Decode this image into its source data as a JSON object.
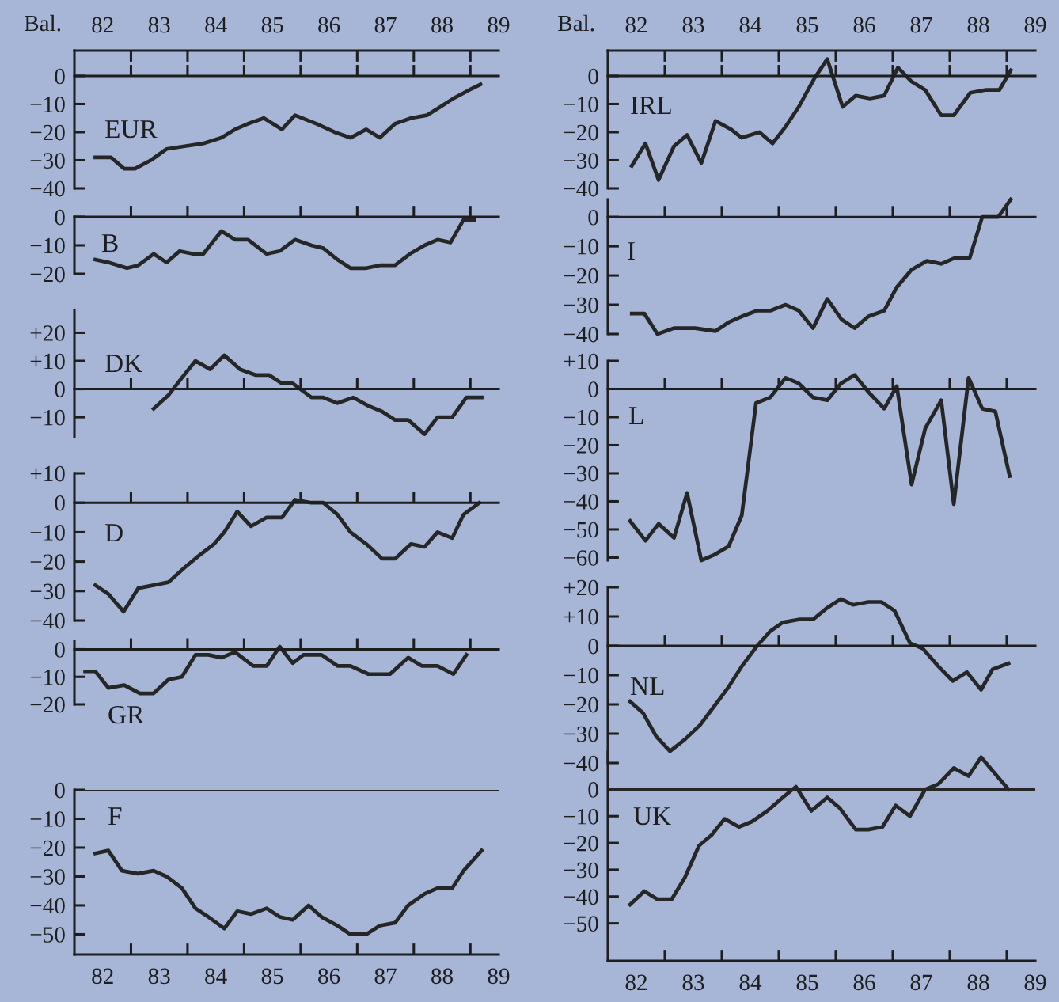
{
  "chart_data": [
    {
      "type": "line",
      "annotations": [
        "Bal."
      ],
      "xlim": [
        82,
        89.5
      ],
      "xticks": [
        {
          "value": 83,
          "label": null
        },
        {
          "value": 84,
          "label": null
        },
        {
          "value": 85,
          "label": null
        },
        {
          "value": 86,
          "label": null
        },
        {
          "value": 87,
          "label": null
        },
        {
          "value": 88,
          "label": null
        },
        {
          "value": 89,
          "label": null
        }
      ],
      "x2lim": [
        82,
        89.5
      ],
      "x2ticks": [
        {
          "value": 82.5,
          "label": "82"
        },
        {
          "value": 83.5,
          "label": "83"
        },
        {
          "value": 84.5,
          "label": "84"
        },
        {
          "value": 85.5,
          "label": "85"
        },
        {
          "value": 86.5,
          "label": "86"
        },
        {
          "value": 87.5,
          "label": "87"
        },
        {
          "value": 88.5,
          "label": "88"
        },
        {
          "value": 89.5,
          "label": "89"
        },
        {
          "value": 83,
          "label": null
        },
        {
          "value": 84,
          "label": null
        },
        {
          "value": 85,
          "label": null
        },
        {
          "value": 86,
          "label": null
        },
        {
          "value": 87,
          "label": null
        },
        {
          "value": 88,
          "label": null
        },
        {
          "value": 89,
          "label": null
        }
      ],
      "ylim": [
        -40,
        9
      ],
      "yticks": [
        0,
        {
          "value": -10,
          "label": "−10"
        },
        {
          "value": -20,
          "label": "−20"
        },
        {
          "value": -30,
          "label": "−30"
        },
        {
          "value": -40,
          "label": "−40"
        }
      ],
      "tick_labels": "y",
      "marker": "none",
      "line_style": "solid",
      "series": [
        {
          "name": "EUR",
          "color": "#262626",
          "x": [
            82.37,
            82.65,
            82.88,
            83.07,
            83.35,
            83.63,
            83.95,
            84.28,
            84.6,
            84.84,
            85.07,
            85.35,
            85.67,
            85.9,
            86.28,
            86.6,
            86.88,
            87.16,
            87.4,
            87.67,
            87.95,
            88.23,
            88.47,
            88.7,
            88.98,
            89.18
          ],
          "values": [
            -29,
            -29,
            -33,
            -33,
            -30,
            -26,
            -25,
            -24,
            -22,
            -19,
            -17,
            -15,
            -19,
            -14,
            -17,
            -20,
            -22,
            -19,
            -22,
            -17,
            -15,
            -14,
            -11,
            -8,
            -5,
            -3
          ]
        }
      ]
    },
    {
      "type": "line",
      "xlim": [
        82,
        89.5
      ],
      "xticks": [
        {
          "value": 83,
          "label": null
        },
        {
          "value": 84,
          "label": null
        },
        {
          "value": 85,
          "label": null
        },
        {
          "value": 86,
          "label": null
        },
        {
          "value": 87,
          "label": null
        },
        {
          "value": 88,
          "label": null
        },
        {
          "value": 89,
          "label": null
        }
      ],
      "ylim": [
        -20,
        0
      ],
      "yticks": [
        0,
        {
          "value": -10,
          "label": "−10"
        },
        {
          "value": -20,
          "label": "−20"
        }
      ],
      "tick_labels": "y",
      "marker": "none",
      "line_style": "solid",
      "series": [
        {
          "name": "B",
          "color": "#262626",
          "x": [
            82.37,
            82.6,
            82.93,
            83.13,
            83.4,
            83.63,
            83.86,
            84.1,
            84.28,
            84.6,
            84.84,
            85.07,
            85.4,
            85.63,
            85.9,
            86.19,
            86.4,
            86.65,
            86.88,
            87.16,
            87.4,
            87.67,
            87.93,
            88.19,
            88.42,
            88.65,
            88.88,
            89.07
          ],
          "values": [
            -15,
            -16,
            -18,
            -17,
            -13,
            -16,
            -12,
            -13,
            -13,
            -5,
            -8,
            -8,
            -13,
            -12,
            -8,
            -10,
            -11,
            -15,
            -18,
            -18,
            -17,
            -17,
            -13,
            -10,
            -8,
            -9,
            -1,
            -1
          ]
        }
      ]
    },
    {
      "type": "line",
      "xlim": [
        82,
        89.5
      ],
      "xticks": [
        {
          "value": 83,
          "label": null
        },
        {
          "value": 84,
          "label": null
        },
        {
          "value": 85,
          "label": null
        },
        {
          "value": 86,
          "label": null
        },
        {
          "value": 87,
          "label": null
        },
        {
          "value": 88,
          "label": null
        },
        {
          "value": 89,
          "label": null
        }
      ],
      "ylim": [
        -17,
        28
      ],
      "yticks": [
        {
          "value": 20,
          "label": "+20"
        },
        {
          "value": 10,
          "label": "+10"
        },
        0,
        {
          "value": -10,
          "label": "−10"
        }
      ],
      "tick_labels": "y",
      "marker": "none",
      "line_style": "solid",
      "series": [
        {
          "name": "DK",
          "color": "#262626",
          "x": [
            83.4,
            83.67,
            83.9,
            84.14,
            84.4,
            84.65,
            84.93,
            85.2,
            85.44,
            85.67,
            85.86,
            86.19,
            86.4,
            86.65,
            86.93,
            87.2,
            87.44,
            87.67,
            87.9,
            88.19,
            88.42,
            88.68,
            88.93,
            89.2
          ],
          "values": [
            -7,
            -2,
            4,
            10,
            7,
            12,
            7,
            5,
            5,
            2,
            2,
            -3,
            -3,
            -5,
            -3,
            -6,
            -8,
            -11,
            -11,
            -16,
            -10,
            -10,
            -3,
            -3
          ]
        }
      ]
    },
    {
      "type": "line",
      "xlim": [
        82,
        89.5
      ],
      "xticks": [
        {
          "value": 83,
          "label": null
        },
        {
          "value": 84,
          "label": null
        },
        {
          "value": 85,
          "label": null
        },
        {
          "value": 86,
          "label": null
        },
        {
          "value": 87,
          "label": null
        },
        {
          "value": 88,
          "label": null
        },
        {
          "value": 89,
          "label": null
        }
      ],
      "ylim": [
        -40,
        10
      ],
      "yticks": [
        {
          "value": 10,
          "label": "+10"
        },
        0,
        {
          "value": -10,
          "label": "−10"
        },
        {
          "value": -20,
          "label": "−20"
        },
        {
          "value": -30,
          "label": "−30"
        },
        {
          "value": -40,
          "label": "−40"
        }
      ],
      "tick_labels": "y",
      "marker": "none",
      "line_style": "solid",
      "series": [
        {
          "name": "D",
          "color": "#262626",
          "x": [
            82.37,
            82.6,
            82.87,
            83.13,
            83.4,
            83.66,
            83.95,
            84.2,
            84.47,
            84.65,
            84.88,
            85.12,
            85.4,
            85.67,
            85.9,
            86.19,
            86.4,
            86.65,
            86.88,
            87.16,
            87.44,
            87.67,
            87.95,
            88.19,
            88.42,
            88.68,
            88.88,
            89.16
          ],
          "values": [
            -28,
            -31,
            -37,
            -29,
            -28,
            -27,
            -22,
            -18,
            -14,
            -10,
            -3,
            -8,
            -5,
            -5,
            1,
            0,
            0,
            -4,
            -10,
            -14,
            -19,
            -19,
            -14,
            -15,
            -10,
            -12,
            -4,
            0
          ]
        }
      ]
    },
    {
      "type": "line",
      "xlim": [
        82,
        89.5
      ],
      "xticks": [
        {
          "value": 83,
          "label": null
        },
        {
          "value": 84,
          "label": null
        },
        {
          "value": 85,
          "label": null
        },
        {
          "value": 86,
          "label": null
        },
        {
          "value": 87,
          "label": null
        },
        {
          "value": 88,
          "label": null
        },
        {
          "value": 89,
          "label": null
        }
      ],
      "ylim": [
        -20,
        3
      ],
      "yticks": [
        0,
        {
          "value": -10,
          "label": "−10"
        },
        {
          "value": -20,
          "label": "−20"
        }
      ],
      "tick_labels": "y",
      "marker": "none",
      "line_style": "solid",
      "series": [
        {
          "name": "GR",
          "color": "#262626",
          "x": [
            82.19,
            82.37,
            82.6,
            82.88,
            83.16,
            83.4,
            83.66,
            83.9,
            84.14,
            84.37,
            84.6,
            84.84,
            85.16,
            85.4,
            85.63,
            85.86,
            86.05,
            86.37,
            86.65,
            86.88,
            87.2,
            87.58,
            87.9,
            88.14,
            88.42,
            88.7,
            88.93
          ],
          "values": [
            -8,
            -8,
            -14,
            -13,
            -16,
            -16,
            -11,
            -10,
            -2,
            -2,
            -3,
            -1,
            -6,
            -6,
            1,
            -5,
            -2,
            -2,
            -6,
            -6,
            -9,
            -9,
            -3,
            -6,
            -6,
            -9,
            -2
          ]
        }
      ]
    },
    {
      "type": "line",
      "xlim": [
        82,
        89.5
      ],
      "xticks": [
        {
          "value": 82.5,
          "label": "82"
        },
        {
          "value": 83.5,
          "label": "83"
        },
        {
          "value": 84.5,
          "label": "84"
        },
        {
          "value": 85.5,
          "label": "85"
        },
        {
          "value": 86.5,
          "label": "86"
        },
        {
          "value": 87.5,
          "label": "87"
        },
        {
          "value": 88.5,
          "label": "88"
        },
        {
          "value": 89.5,
          "label": "89"
        },
        {
          "value": 83,
          "label": null
        },
        {
          "value": 84,
          "label": null
        },
        {
          "value": 85,
          "label": null
        },
        {
          "value": 86,
          "label": null
        },
        {
          "value": 87,
          "label": null
        },
        {
          "value": 88,
          "label": null
        },
        {
          "value": 89,
          "label": null
        }
      ],
      "ylim": [
        -57,
        0
      ],
      "yticks": [
        0,
        {
          "value": -10,
          "label": "−10"
        },
        {
          "value": -20,
          "label": "−20"
        },
        {
          "value": -30,
          "label": "−30"
        },
        {
          "value": -40,
          "label": "−40"
        },
        {
          "value": -50,
          "label": "−50"
        }
      ],
      "ref_lines": [
        {
          "axis": "y",
          "value": 0,
          "color": "#262626"
        }
      ],
      "marker": "none",
      "line_style": "solid",
      "series": [
        {
          "name": "F",
          "color": "#262626",
          "x": [
            82.37,
            82.6,
            82.84,
            83.12,
            83.4,
            83.63,
            83.9,
            84.14,
            84.37,
            84.65,
            84.88,
            85.12,
            85.4,
            85.63,
            85.86,
            86.14,
            86.37,
            86.65,
            86.88,
            87.16,
            87.4,
            87.67,
            87.9,
            88.19,
            88.42,
            88.68,
            88.88,
            89.2
          ],
          "values": [
            -22,
            -21,
            -28,
            -29,
            -28,
            -30,
            -34,
            -41,
            -44,
            -48,
            -42,
            -43,
            -41,
            -44,
            -45,
            -40,
            -44,
            -47,
            -50,
            -50,
            -47,
            -46,
            -40,
            -36,
            -34,
            -34,
            -28,
            -21
          ]
        }
      ]
    },
    {
      "type": "line",
      "annotations": [
        "Bal."
      ],
      "xlim": [
        82,
        89.5
      ],
      "xticks": [
        {
          "value": 83,
          "label": null
        },
        {
          "value": 84,
          "label": null
        },
        {
          "value": 85,
          "label": null
        },
        {
          "value": 86,
          "label": null
        },
        {
          "value": 87,
          "label": null
        },
        {
          "value": 88,
          "label": null
        },
        {
          "value": 89,
          "label": null
        }
      ],
      "x2lim": [
        82,
        89.5
      ],
      "x2ticks": [
        {
          "value": 82.5,
          "label": "82"
        },
        {
          "value": 83.5,
          "label": "83"
        },
        {
          "value": 84.5,
          "label": "84"
        },
        {
          "value": 85.5,
          "label": "85"
        },
        {
          "value": 86.5,
          "label": "86"
        },
        {
          "value": 87.5,
          "label": "87"
        },
        {
          "value": 88.5,
          "label": "88"
        },
        {
          "value": 89.5,
          "label": "89"
        },
        {
          "value": 83,
          "label": null
        },
        {
          "value": 84,
          "label": null
        },
        {
          "value": 85,
          "label": null
        },
        {
          "value": 86,
          "label": null
        },
        {
          "value": 87,
          "label": null
        },
        {
          "value": 88,
          "label": null
        },
        {
          "value": 89,
          "label": null
        }
      ],
      "ylim": [
        -40,
        9
      ],
      "yticks": [
        0,
        {
          "value": -10,
          "label": "−10"
        },
        {
          "value": -20,
          "label": "−20"
        },
        {
          "value": -30,
          "label": "−30"
        },
        {
          "value": -40,
          "label": "−40"
        }
      ],
      "tick_labels": "y",
      "marker": "none",
      "line_style": "solid",
      "series": [
        {
          "name": "IRL",
          "color": "#262626",
          "x": [
            82.42,
            82.66,
            82.89,
            83.16,
            83.39,
            83.64,
            83.89,
            84.16,
            84.35,
            84.66,
            84.89,
            85.12,
            85.35,
            85.62,
            85.85,
            86.12,
            86.35,
            86.6,
            86.85,
            87.09,
            87.33,
            87.57,
            87.85,
            88.07,
            88.36,
            88.62,
            88.87,
            89.07
          ],
          "values": [
            -32,
            -24,
            -37,
            -25,
            -21,
            -31,
            -16,
            -19,
            -22,
            -20,
            -24,
            -18,
            -11,
            -1,
            6,
            -11,
            -7,
            -8,
            -7,
            3,
            -2,
            -5,
            -14,
            -14,
            -6,
            -5,
            -5,
            2
          ]
        }
      ]
    },
    {
      "type": "line",
      "xlim": [
        82,
        89.5
      ],
      "xticks": [
        {
          "value": 83,
          "label": null
        },
        {
          "value": 84,
          "label": null
        },
        {
          "value": 85,
          "label": null
        },
        {
          "value": 86,
          "label": null
        },
        {
          "value": 87,
          "label": null
        },
        {
          "value": 88,
          "label": null
        },
        {
          "value": 89,
          "label": null
        }
      ],
      "ylim": [
        -40,
        6
      ],
      "yticks": [
        0,
        {
          "value": -10,
          "label": "−10"
        },
        {
          "value": -20,
          "label": "−20"
        },
        {
          "value": -30,
          "label": "−30"
        },
        {
          "value": -40,
          "label": "−40"
        }
      ],
      "tick_labels": "y",
      "marker": "none",
      "line_style": "solid",
      "series": [
        {
          "name": "I",
          "color": "#262626",
          "x": [
            82.42,
            82.64,
            82.87,
            83.16,
            83.53,
            83.89,
            84.12,
            84.35,
            84.62,
            84.85,
            85.12,
            85.35,
            85.6,
            85.85,
            86.1,
            86.33,
            86.57,
            86.85,
            87.07,
            87.33,
            87.6,
            87.85,
            88.09,
            88.35,
            88.57,
            88.85,
            89.07
          ],
          "values": [
            -33,
            -33,
            -40,
            -38,
            -38,
            -39,
            -36,
            -34,
            -32,
            -32,
            -30,
            -32,
            -38,
            -28,
            -35,
            -38,
            -34,
            -32,
            -24,
            -18,
            -15,
            -16,
            -14,
            -14,
            0,
            0,
            6
          ]
        }
      ]
    },
    {
      "type": "line",
      "xlim": [
        82,
        89.5
      ],
      "xticks": [
        {
          "value": 83,
          "label": null
        },
        {
          "value": 84,
          "label": null
        },
        {
          "value": 85,
          "label": null
        },
        {
          "value": 86,
          "label": null
        },
        {
          "value": 87,
          "label": null
        },
        {
          "value": 88,
          "label": null
        },
        {
          "value": 89,
          "label": null
        }
      ],
      "ylim": [
        -61,
        10
      ],
      "yticks": [
        {
          "value": 10,
          "label": "+10"
        },
        0,
        {
          "value": -10,
          "label": "−10"
        },
        {
          "value": -20,
          "label": "−20"
        },
        {
          "value": -30,
          "label": "−30"
        },
        {
          "value": -40,
          "label": "−40"
        },
        {
          "value": -50,
          "label": "−50"
        },
        {
          "value": -60,
          "label": "−60"
        }
      ],
      "tick_labels": "y",
      "marker": "none",
      "line_style": "solid",
      "series": [
        {
          "name": "L",
          "color": "#262626",
          "x": [
            82.39,
            82.66,
            82.89,
            83.16,
            83.39,
            83.64,
            83.87,
            84.12,
            84.35,
            84.6,
            84.85,
            85.12,
            85.35,
            85.6,
            85.85,
            86.09,
            86.33,
            86.57,
            86.85,
            87.07,
            87.33,
            87.57,
            87.85,
            88.07,
            88.33,
            88.57,
            88.8,
            89.05
          ],
          "values": [
            -47,
            -54,
            -48,
            -53,
            -37,
            -61,
            -59,
            -56,
            -45,
            -5,
            -3,
            4,
            2,
            -3,
            -4,
            2,
            5,
            -1,
            -7,
            1,
            -34,
            -14,
            -4,
            -41,
            4,
            -7,
            -8,
            -31
          ]
        }
      ]
    },
    {
      "type": "line",
      "xlim": [
        82,
        89.5
      ],
      "xticks": [
        {
          "value": 83,
          "label": null
        },
        {
          "value": 84,
          "label": null
        },
        {
          "value": 85,
          "label": null
        },
        {
          "value": 86,
          "label": null
        },
        {
          "value": 87,
          "label": null
        },
        {
          "value": 88,
          "label": null
        },
        {
          "value": 89,
          "label": null
        }
      ],
      "ylim": [
        -40,
        20
      ],
      "yticks": [
        {
          "value": 20,
          "label": "+20"
        },
        {
          "value": 10,
          "label": "+10"
        },
        0,
        {
          "value": -10,
          "label": "−10"
        },
        {
          "value": -20,
          "label": "−20"
        },
        {
          "value": -30,
          "label": "−30"
        },
        {
          "value": -40,
          "label": "−40"
        }
      ],
      "tick_labels": "y",
      "marker": "none",
      "line_style": "solid",
      "series": [
        {
          "name": "NL",
          "color": "#262626",
          "x": [
            82.39,
            82.62,
            82.85,
            83.09,
            83.35,
            83.62,
            83.89,
            84.12,
            84.35,
            84.62,
            84.85,
            85.07,
            85.35,
            85.6,
            85.85,
            86.09,
            86.3,
            86.57,
            86.8,
            87.03,
            87.3,
            87.53,
            87.8,
            88.05,
            88.3,
            88.55,
            88.75,
            89.03
          ],
          "values": [
            -19,
            -23,
            -31,
            -36,
            -32,
            -27,
            -20,
            -14,
            -7,
            0,
            5,
            8,
            9,
            9,
            13,
            16,
            14,
            15,
            15,
            12,
            1,
            -1,
            -7,
            -12,
            -9,
            -15,
            -8,
            -6
          ]
        }
      ]
    },
    {
      "type": "line",
      "xlim": [
        82,
        89.5
      ],
      "xticks": [
        {
          "value": 82.5,
          "label": "82"
        },
        {
          "value": 83.5,
          "label": "83"
        },
        {
          "value": 84.5,
          "label": "84"
        },
        {
          "value": 85.5,
          "label": "85"
        },
        {
          "value": 86.5,
          "label": "86"
        },
        {
          "value": 87.5,
          "label": "87"
        },
        {
          "value": 88.5,
          "label": "88"
        },
        {
          "value": 89.5,
          "label": "89"
        },
        {
          "value": 83,
          "label": null
        },
        {
          "value": 84,
          "label": null
        },
        {
          "value": 85,
          "label": null
        },
        {
          "value": 86,
          "label": null
        },
        {
          "value": 87,
          "label": null
        },
        {
          "value": 88,
          "label": null
        },
        {
          "value": 89,
          "label": null
        }
      ],
      "ylim": [
        -64,
        14
      ],
      "yticks": [
        0,
        {
          "value": -10,
          "label": "−10"
        },
        {
          "value": -20,
          "label": "−20"
        },
        {
          "value": -30,
          "label": "−30"
        },
        {
          "value": -40,
          "label": "−40"
        },
        {
          "value": -50,
          "label": "−50"
        }
      ],
      "ref_lines": [
        {
          "axis": "y",
          "value": 0,
          "color": "#262626"
        }
      ],
      "marker": "none",
      "line_style": "solid",
      "series": [
        {
          "name": "UK",
          "color": "#262626",
          "x": [
            82.39,
            82.64,
            82.87,
            83.12,
            83.35,
            83.6,
            83.82,
            84.05,
            84.3,
            84.53,
            84.8,
            85.07,
            85.3,
            85.57,
            85.85,
            86.07,
            86.35,
            86.57,
            86.82,
            87.05,
            87.3,
            87.57,
            87.8,
            88.07,
            88.33,
            88.55,
            88.75,
            89.03
          ],
          "values": [
            -43,
            -38,
            -41,
            -41,
            -33,
            -21,
            -17,
            -11,
            -14,
            -12,
            -8,
            -3,
            1,
            -8,
            -3,
            -7,
            -15,
            -15,
            -14,
            -6,
            -10,
            0,
            2,
            8,
            5,
            12,
            7,
            0
          ]
        }
      ]
    }
  ]
}
